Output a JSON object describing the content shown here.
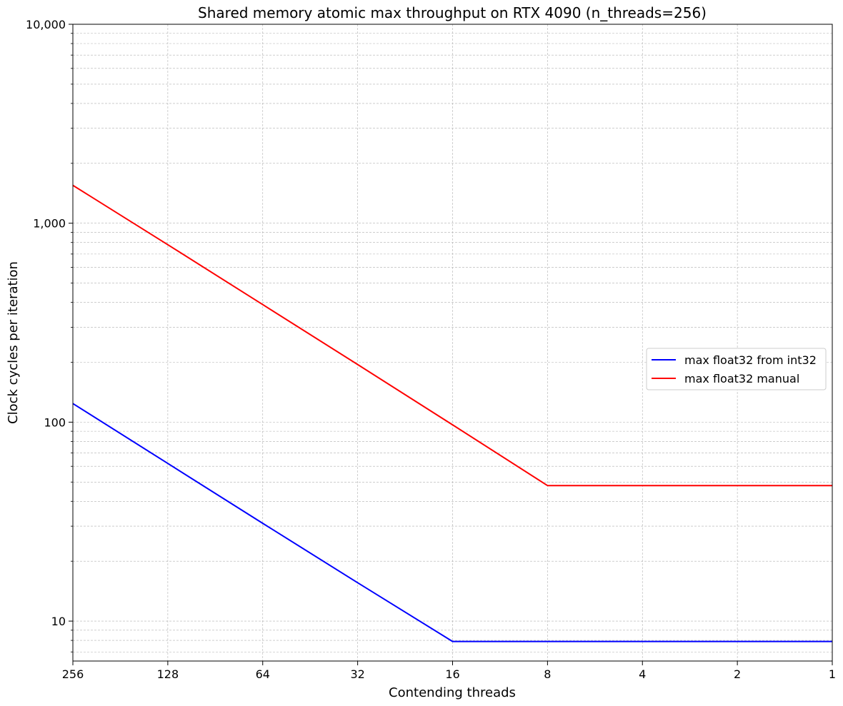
{
  "chart_data": {
    "type": "line",
    "title": "Shared memory atomic max throughput on RTX 4090 (n_threads=256)",
    "xlabel": "Contending threads",
    "ylabel": "Clock cycles per iteration",
    "x_scale": "log2",
    "x_reversed": true,
    "xlim": [
      256,
      1
    ],
    "y_scale": "log10",
    "ylim": [
      6.3,
      10000
    ],
    "x_ticks": [
      "256",
      "128",
      "64",
      "32",
      "16",
      "8",
      "4",
      "2",
      "1"
    ],
    "y_ticks": [
      "10",
      "100",
      "1,000",
      "10,000"
    ],
    "grid": true,
    "legend_position": "center-right",
    "x": [
      256,
      128,
      64,
      32,
      16,
      8,
      4,
      2,
      1
    ],
    "series": [
      {
        "name": "max float32 from int32",
        "color": "#0000ff",
        "values": [
          124,
          62,
          31,
          15.6,
          7.9,
          7.9,
          7.9,
          7.9,
          7.9
        ]
      },
      {
        "name": "max float32 manual",
        "color": "#ff0000",
        "values": [
          1550,
          780,
          390,
          195,
          97,
          48,
          48,
          48,
          48
        ]
      }
    ]
  }
}
